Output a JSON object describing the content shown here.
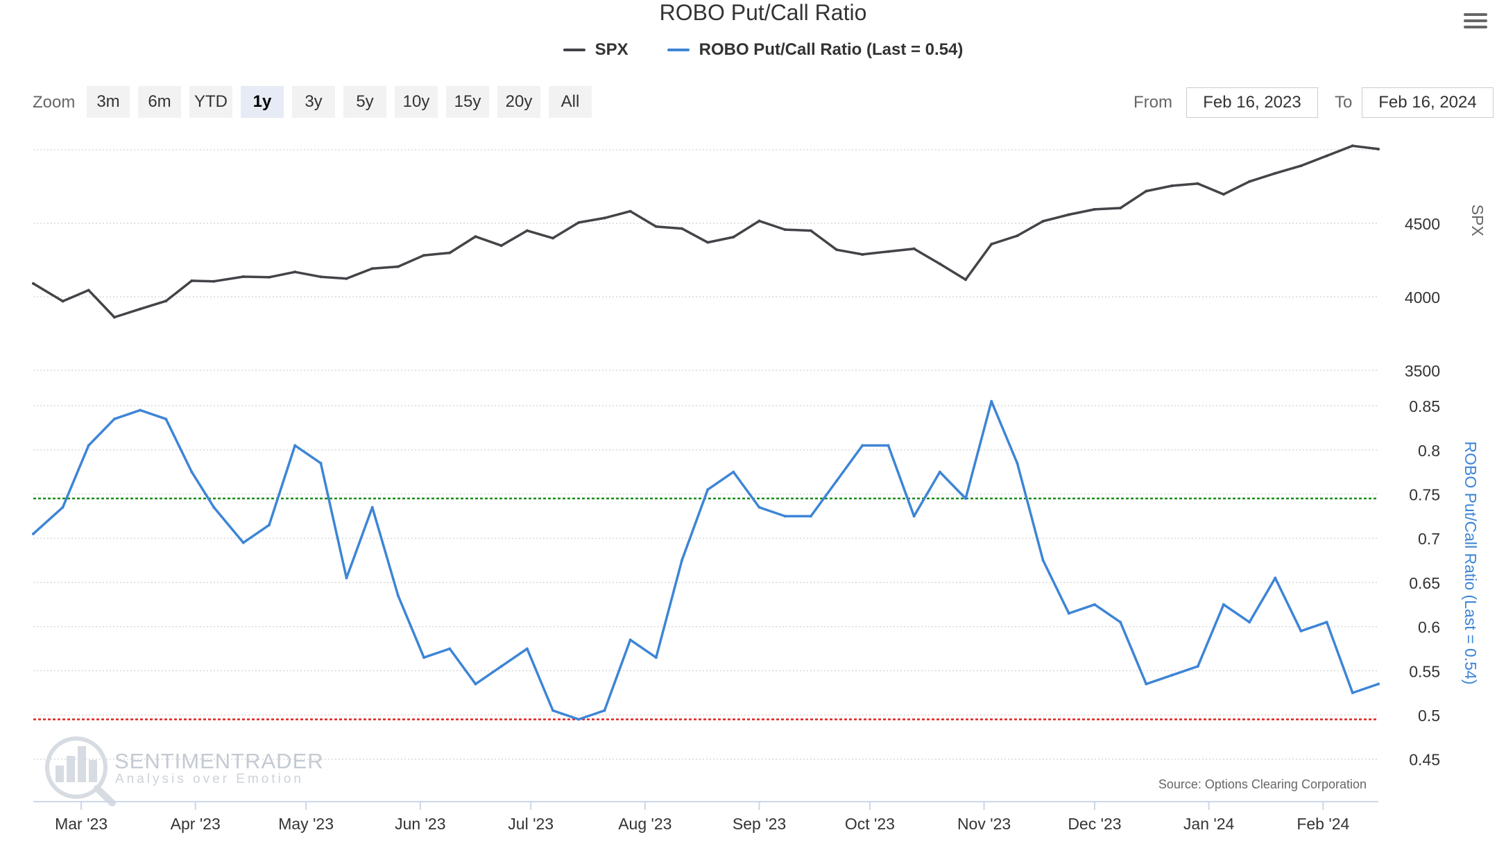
{
  "title": "ROBO Put/Call Ratio",
  "menu_icon": "hamburger-menu-icon",
  "zoom": {
    "label": "Zoom",
    "buttons": [
      "3m",
      "6m",
      "YTD",
      "1y",
      "3y",
      "5y",
      "10y",
      "15y",
      "20y",
      "All"
    ],
    "active": "1y"
  },
  "range": {
    "from_label": "From",
    "from_value": "Feb 16, 2023",
    "to_label": "To",
    "to_value": "Feb 16, 2024"
  },
  "watermark": {
    "name": "SENTIMENTRADER",
    "tagline": "Analysis over Emotion"
  },
  "source": "Source: Options Clearing Corporation",
  "colors": {
    "spx": "#434348",
    "robo": "#3d85d6",
    "upper_line": "#1a8a1a",
    "lower_line": "#e02020",
    "grid": "#d8d8d8"
  },
  "chart_data": {
    "type": "line",
    "x_start": "2023-02-16",
    "x_end": "2024-02-16",
    "x_tick_labels": [
      "Mar '23",
      "Apr '23",
      "May '23",
      "Jun '23",
      "Jul '23",
      "Aug '23",
      "Sep '23",
      "Oct '23",
      "Nov '23",
      "Dec '23",
      "Jan '24",
      "Feb '24"
    ],
    "x_ticks": [
      "2023-03-01",
      "2023-04-01",
      "2023-05-01",
      "2023-06-01",
      "2023-07-01",
      "2023-08-01",
      "2023-09-01",
      "2023-10-01",
      "2023-11-01",
      "2023-12-01",
      "2024-01-01",
      "2024-02-01"
    ],
    "x": [
      "2023-02-16",
      "2023-02-24",
      "2023-03-03",
      "2023-03-10",
      "2023-03-17",
      "2023-03-24",
      "2023-03-31",
      "2023-04-06",
      "2023-04-14",
      "2023-04-21",
      "2023-04-28",
      "2023-05-05",
      "2023-05-12",
      "2023-05-19",
      "2023-05-26",
      "2023-06-02",
      "2023-06-09",
      "2023-06-16",
      "2023-06-23",
      "2023-06-30",
      "2023-07-07",
      "2023-07-14",
      "2023-07-21",
      "2023-07-28",
      "2023-08-04",
      "2023-08-11",
      "2023-08-18",
      "2023-08-25",
      "2023-09-01",
      "2023-09-08",
      "2023-09-15",
      "2023-09-22",
      "2023-09-29",
      "2023-10-06",
      "2023-10-13",
      "2023-10-20",
      "2023-10-27",
      "2023-11-03",
      "2023-11-10",
      "2023-11-17",
      "2023-11-24",
      "2023-12-01",
      "2023-12-08",
      "2023-12-15",
      "2023-12-22",
      "2023-12-29",
      "2024-01-05",
      "2024-01-12",
      "2024-01-19",
      "2024-01-26",
      "2024-02-02",
      "2024-02-09",
      "2024-02-16"
    ],
    "series": [
      {
        "name": "SPX",
        "axis": "upper",
        "values": [
          4090,
          3970,
          4045,
          3861,
          3917,
          3971,
          4109,
          4105,
          4137,
          4133,
          4169,
          4136,
          4124,
          4192,
          4205,
          4282,
          4299,
          4410,
          4348,
          4450,
          4399,
          4505,
          4536,
          4582,
          4478,
          4464,
          4370,
          4406,
          4516,
          4457,
          4450,
          4320,
          4288,
          4308,
          4327,
          4224,
          4117,
          4358,
          4415,
          4514,
          4559,
          4595,
          4604,
          4719,
          4755,
          4770,
          4697,
          4784,
          4840,
          4891,
          4959,
          5027,
          5005
        ]
      },
      {
        "name": "ROBO Put/Call Ratio (Last = 0.54)",
        "axis": "lower",
        "values": [
          0.705,
          0.735,
          0.805,
          0.835,
          0.845,
          0.835,
          0.775,
          0.735,
          0.695,
          0.715,
          0.805,
          0.785,
          0.655,
          0.735,
          0.635,
          0.565,
          0.575,
          0.535,
          0.555,
          0.575,
          0.505,
          0.495,
          0.505,
          0.585,
          0.565,
          0.675,
          0.755,
          0.775,
          0.735,
          0.725,
          0.725,
          0.765,
          0.805,
          0.805,
          0.725,
          0.775,
          0.745,
          0.855,
          0.785,
          0.675,
          0.615,
          0.625,
          0.605,
          0.535,
          0.545,
          0.555,
          0.625,
          0.605,
          0.655,
          0.595,
          0.605,
          0.525,
          0.535
        ]
      }
    ],
    "upper_axis": {
      "title": "SPX",
      "ticks": [
        3500,
        4000,
        4500
      ]
    },
    "lower_axis": {
      "title": "ROBO Put/Call Ratio (Last = 0.54)",
      "ticks": [
        0.45,
        0.5,
        0.55,
        0.6,
        0.65,
        0.7,
        0.75,
        0.8,
        0.85
      ]
    },
    "reference_lines": [
      {
        "axis": "lower",
        "value": 0.745,
        "style": "dashed",
        "color": "green"
      },
      {
        "axis": "lower",
        "value": 0.495,
        "style": "dashed",
        "color": "red"
      }
    ],
    "grid": true,
    "legend_position": "top"
  }
}
